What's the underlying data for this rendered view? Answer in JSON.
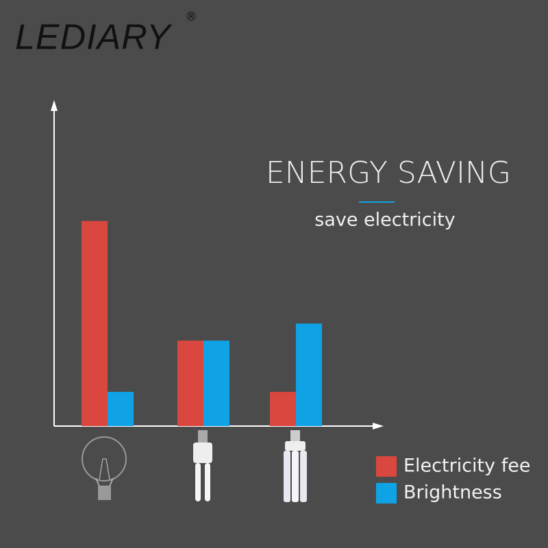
{
  "brand": "LEDIARY",
  "registered": "®",
  "chart_data": {
    "type": "bar",
    "title": "ENERGY SAVING",
    "subtitle": "save electricity",
    "categories": [
      null,
      null,
      null
    ],
    "series": [
      {
        "name": "Electricity fee",
        "color": "#d9473f",
        "values": [
          6,
          2.5,
          1
        ]
      },
      {
        "name": "Brightness",
        "color": "#0fa3e6",
        "values": [
          1,
          2.5,
          3
        ]
      }
    ],
    "ylim": [
      0,
      9.5
    ]
  }
}
